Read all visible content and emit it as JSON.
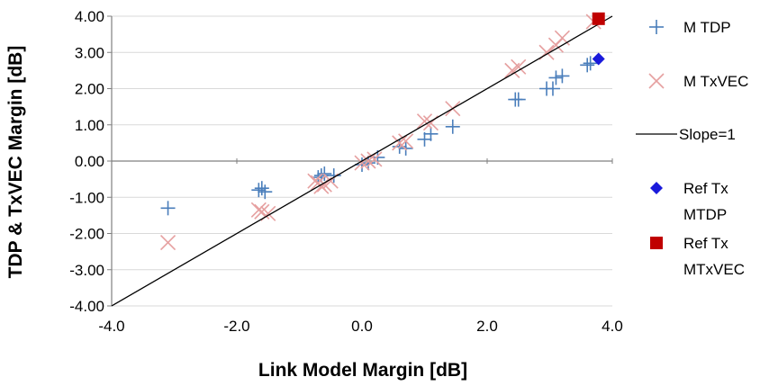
{
  "chart_data": {
    "type": "scatter",
    "xlabel": "Link Model Margin [dB]",
    "ylabel": "TDP & TxVEC Margin [dB]",
    "xlim": [
      -4.0,
      4.0
    ],
    "ylim": [
      -4.0,
      4.0
    ],
    "x_ticks": [
      -4.0,
      -2.0,
      0.0,
      2.0,
      4.0
    ],
    "x_tick_labels": [
      "-4.0",
      "-2.0",
      "0.0",
      "2.0",
      "4.0"
    ],
    "y_ticks": [
      4.0,
      3.0,
      2.0,
      1.0,
      0.0,
      -1.0,
      -2.0,
      -3.0,
      -4.0
    ],
    "y_tick_labels": [
      "4.00",
      "3.00",
      "2.00",
      "1.00",
      "0.00",
      "-1.00",
      "-2.00",
      "-3.00",
      "-4.00"
    ],
    "grid": "horizontal",
    "legend_position": "right",
    "series": [
      {
        "name": "M  TDP",
        "marker": "plus",
        "color": "#4a7ebb",
        "x": [
          -3.1,
          -1.65,
          -1.6,
          -1.55,
          -0.7,
          -0.65,
          -0.6,
          -0.45,
          0.0,
          0.1,
          0.25,
          0.6,
          0.7,
          1.0,
          1.1,
          1.45,
          2.45,
          2.5,
          2.95,
          3.05,
          3.1,
          3.2,
          3.6,
          3.65
        ],
        "y": [
          -1.3,
          -0.8,
          -0.75,
          -0.85,
          -0.45,
          -0.4,
          -0.35,
          -0.4,
          -0.1,
          -0.05,
          0.1,
          0.4,
          0.35,
          0.6,
          0.75,
          0.95,
          1.7,
          1.7,
          2.0,
          2.0,
          2.3,
          2.35,
          2.65,
          2.7
        ]
      },
      {
        "name": "M TxVEC",
        "marker": "x",
        "color": "#e6a0a0",
        "x": [
          -3.1,
          -1.65,
          -1.6,
          -1.5,
          -0.75,
          -0.7,
          -0.65,
          -0.6,
          -0.5,
          0.0,
          0.1,
          0.2,
          0.6,
          0.7,
          1.0,
          1.1,
          1.45,
          2.4,
          2.5,
          2.95,
          3.1,
          3.2,
          3.7
        ],
        "y": [
          -2.25,
          -1.35,
          -1.4,
          -1.45,
          -0.55,
          -0.6,
          -0.7,
          -0.65,
          -0.55,
          -0.05,
          0.0,
          0.05,
          0.5,
          0.55,
          1.1,
          1.05,
          1.45,
          2.5,
          2.6,
          3.0,
          3.2,
          3.4,
          3.85
        ]
      },
      {
        "name": "Slope=1",
        "marker": "line",
        "color": "#000000",
        "x": [
          -4.0,
          4.0
        ],
        "y": [
          -4.0,
          4.0
        ]
      },
      {
        "name": "Ref Tx MTDP",
        "legend_lines": [
          "Ref Tx",
          "MTDP"
        ],
        "marker": "diamond",
        "color": "#1a1adb",
        "x": [
          3.78
        ],
        "y": [
          2.82
        ]
      },
      {
        "name": "Ref Tx MTxVEC",
        "legend_lines": [
          "Ref Tx",
          "MTxVEC"
        ],
        "marker": "square",
        "color": "#c00000",
        "x": [
          3.78
        ],
        "y": [
          3.93
        ]
      }
    ]
  }
}
